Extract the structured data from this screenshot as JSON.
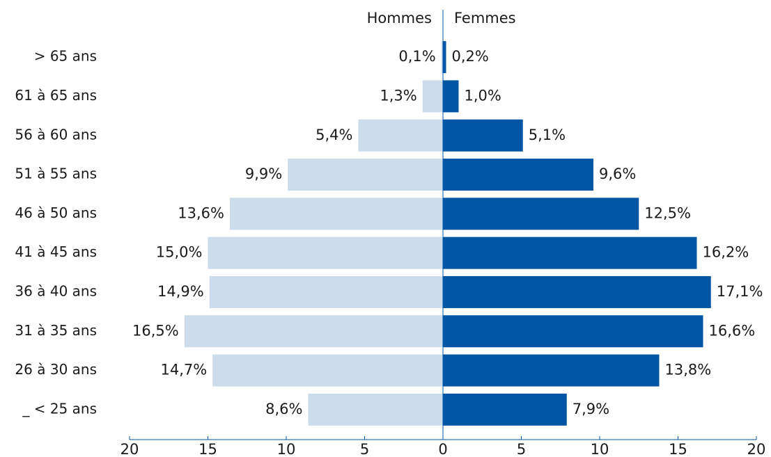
{
  "chart_data": {
    "type": "pyramid",
    "categories": [
      "> 65 ans",
      "61 à 65 ans",
      "56 à 60 ans",
      "51 à 55 ans",
      "46 à 50 ans",
      "41 à 45 ans",
      "36 à 40 ans",
      "31 à 35 ans",
      "26 à 30 ans",
      "_ < 25 ans"
    ],
    "series": [
      {
        "name": "Hommes",
        "color": "#ccdcea",
        "side": "left",
        "values": [
          0.1,
          1.3,
          5.4,
          9.9,
          13.6,
          15.0,
          14.9,
          16.5,
          14.7,
          8.6
        ],
        "value_labels": [
          "0,1%",
          "1,3%",
          "5,4%",
          "9,9%",
          "13,6%",
          "15,0%",
          "14,9%",
          "16,5%",
          "14,7%",
          "8,6%"
        ]
      },
      {
        "name": "Femmes",
        "color": "#0055a4",
        "side": "right",
        "values": [
          0.2,
          1.0,
          5.1,
          9.6,
          12.5,
          16.2,
          17.1,
          16.6,
          13.8,
          7.9
        ],
        "value_labels": [
          "0,2%",
          "1,0%",
          "5,1%",
          "9,6%",
          "12,5%",
          "16,2%",
          "17,1%",
          "16,6%",
          "13,8%",
          "7,9%"
        ]
      }
    ],
    "xlim": [
      -20,
      20
    ],
    "xticks": [
      {
        "value": -20,
        "label": "20"
      },
      {
        "value": -15,
        "label": "15"
      },
      {
        "value": -10,
        "label": "10"
      },
      {
        "value": -5,
        "label": "5"
      },
      0,
      5,
      10,
      15,
      20
    ]
  }
}
